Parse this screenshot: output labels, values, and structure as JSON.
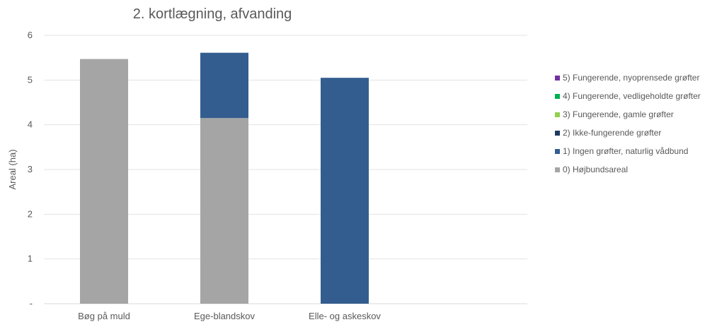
{
  "chart_data": {
    "type": "bar",
    "stacked": true,
    "title": "2. kortlægning, afvanding",
    "xlabel": "",
    "ylabel": "Areal (ha)",
    "ylim": [
      0,
      6
    ],
    "yticks": [
      "-",
      "1",
      "2",
      "3",
      "4",
      "5",
      "6"
    ],
    "grid": true,
    "legend_position": "right",
    "categories": [
      "Bøg på muld",
      "Ege-blandskov",
      "Elle- og askeskov"
    ],
    "series": [
      {
        "name": "0) Højbundsareal",
        "color": "#a5a5a5",
        "values": [
          5.47,
          4.15,
          0
        ]
      },
      {
        "name": "1) Ingen grøfter, naturlig vådbund",
        "color": "#335d8f",
        "values": [
          0,
          1.46,
          5.05
        ]
      },
      {
        "name": "2) Ikke-fungerende grøfter",
        "color": "#1f3a5f",
        "values": [
          0,
          0,
          0
        ]
      },
      {
        "name": "3) Fungerende, gamle grøfter",
        "color": "#92d050",
        "values": [
          0,
          0,
          0
        ]
      },
      {
        "name": "4) Fungerende, vedligeholdte grøfter",
        "color": "#00b050",
        "values": [
          0,
          0,
          0
        ]
      },
      {
        "name": "5) Fungerende, nyoprensede grøfter",
        "color": "#7030a0",
        "values": [
          0,
          0,
          0
        ]
      }
    ]
  }
}
